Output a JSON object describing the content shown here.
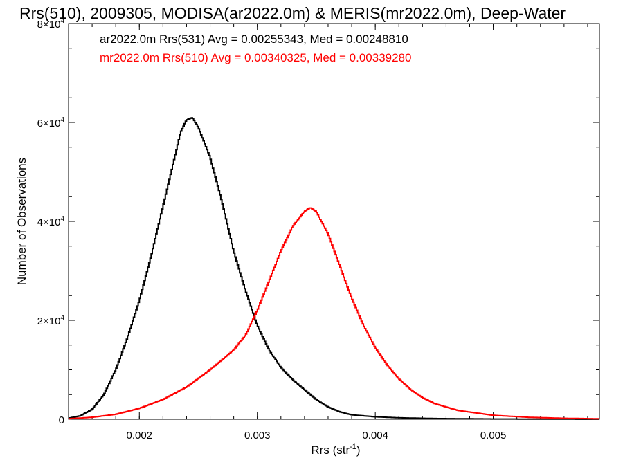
{
  "chart_data": {
    "type": "line",
    "title": "Rrs(510), 2009305, MODISA(ar2022.0m) & MERIS(mr2022.0m), Deep-Water",
    "xlabel": "Rrs (str",
    "xlabel_sup": "-1",
    "xlabel_close": ")",
    "ylabel": "Number of Observations",
    "xlim": [
      0.0014,
      0.0059
    ],
    "ylim": [
      0,
      80000
    ],
    "x_ticks": [
      {
        "value": 0.002,
        "label": "0.002"
      },
      {
        "value": 0.003,
        "label": "0.003"
      },
      {
        "value": 0.004,
        "label": "0.004"
      },
      {
        "value": 0.005,
        "label": "0.005"
      }
    ],
    "y_ticks": [
      {
        "value": 0,
        "base": "0",
        "exp": ""
      },
      {
        "value": 20000,
        "base": "2×10",
        "exp": "4"
      },
      {
        "value": 40000,
        "base": "4×10",
        "exp": "4"
      },
      {
        "value": 60000,
        "base": "6×10",
        "exp": "4"
      },
      {
        "value": 80000,
        "base": "8×10",
        "exp": "4"
      }
    ],
    "grid": false,
    "series": [
      {
        "name": "ar2022.0m Rrs(531) Avg = 0.00255343, Med = 0.00248810",
        "color": "#000000",
        "points": [
          [
            0.0014,
            200
          ],
          [
            0.0015,
            700
          ],
          [
            0.0016,
            2000
          ],
          [
            0.0017,
            5000
          ],
          [
            0.0018,
            10000
          ],
          [
            0.0019,
            16500
          ],
          [
            0.002,
            24000
          ],
          [
            0.0021,
            33000
          ],
          [
            0.0022,
            43000
          ],
          [
            0.0023,
            53000
          ],
          [
            0.00235,
            58000
          ],
          [
            0.0024,
            60500
          ],
          [
            0.00245,
            61000
          ],
          [
            0.0025,
            59000
          ],
          [
            0.0026,
            53000
          ],
          [
            0.0027,
            44000
          ],
          [
            0.0028,
            34000
          ],
          [
            0.0029,
            26000
          ],
          [
            0.003,
            19000
          ],
          [
            0.0031,
            14000
          ],
          [
            0.0032,
            10500
          ],
          [
            0.0033,
            8000
          ],
          [
            0.0034,
            6000
          ],
          [
            0.0035,
            4000
          ],
          [
            0.0036,
            2500
          ],
          [
            0.0037,
            1500
          ],
          [
            0.0038,
            900
          ],
          [
            0.004,
            500
          ],
          [
            0.0042,
            300
          ],
          [
            0.0045,
            150
          ],
          [
            0.005,
            60
          ],
          [
            0.0059,
            10
          ]
        ]
      },
      {
        "name": "mr2022.0m Rrs(510) Avg = 0.00340325, Med = 0.00339280",
        "color": "#ff0000",
        "points": [
          [
            0.0014,
            100
          ],
          [
            0.0016,
            400
          ],
          [
            0.0018,
            1000
          ],
          [
            0.002,
            2200
          ],
          [
            0.0022,
            4000
          ],
          [
            0.0024,
            6500
          ],
          [
            0.0026,
            10000
          ],
          [
            0.0028,
            14000
          ],
          [
            0.0029,
            17000
          ],
          [
            0.003,
            22000
          ],
          [
            0.0031,
            28000
          ],
          [
            0.0032,
            34000
          ],
          [
            0.0033,
            39000
          ],
          [
            0.0034,
            42000
          ],
          [
            0.00345,
            42800
          ],
          [
            0.0035,
            42000
          ],
          [
            0.0036,
            37500
          ],
          [
            0.0037,
            31000
          ],
          [
            0.0038,
            24500
          ],
          [
            0.0039,
            19000
          ],
          [
            0.004,
            14500
          ],
          [
            0.0041,
            11000
          ],
          [
            0.0042,
            8200
          ],
          [
            0.0043,
            6000
          ],
          [
            0.0044,
            4400
          ],
          [
            0.0045,
            3200
          ],
          [
            0.0047,
            1800
          ],
          [
            0.005,
            800
          ],
          [
            0.0053,
            400
          ],
          [
            0.0056,
            200
          ],
          [
            0.0059,
            100
          ]
        ]
      }
    ]
  }
}
